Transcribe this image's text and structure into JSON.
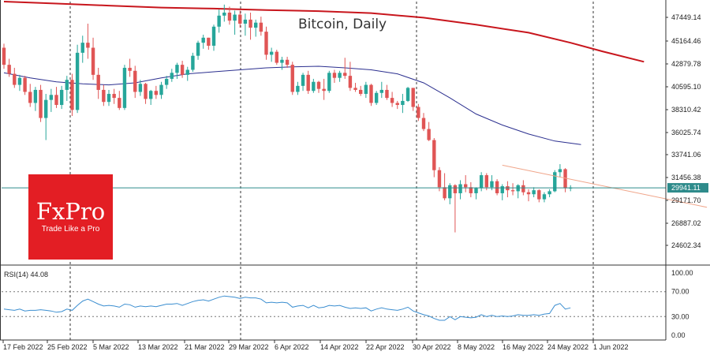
{
  "chart_data": [
    {
      "type": "candlestick",
      "title": "Bitcoin, Daily",
      "up_color": "#26a69a",
      "down_color": "#e05555",
      "x_tick_labels": [
        "17 Feb 2022",
        "25 Feb 2022",
        "5 Mar 2022",
        "13 Mar 2022",
        "21 Mar 2022",
        "29 Mar 2022",
        "6 Apr 2022",
        "14 Apr 2022",
        "22 Apr 2022",
        "30 Apr 2022",
        "8 May 2022",
        "16 May 2022",
        "24 May 2022",
        "1 Jun 2022"
      ],
      "y_tick_labels": [
        "47449.14",
        "45164.46",
        "42879.78",
        "40595.10",
        "38310.42",
        "36025.74",
        "33741.06",
        "31456.38",
        "29171.70",
        "26887.02",
        "24602.34"
      ],
      "ylim": [
        22400,
        48500
      ],
      "current_price_label": "29941.11",
      "current_price": 29941.11,
      "candles": [
        [
          43900,
          44300,
          41800,
          42200
        ],
        [
          42200,
          42800,
          41000,
          41300
        ],
        [
          41300,
          41900,
          39900,
          40200
        ],
        [
          40200,
          41200,
          39600,
          40900
        ],
        [
          40900,
          41100,
          39200,
          39500
        ],
        [
          39500,
          40300,
          38000,
          38400
        ],
        [
          38400,
          40000,
          37600,
          39700
        ],
        [
          39700,
          40200,
          36500,
          36900
        ],
        [
          36900,
          39300,
          34700,
          38700
        ],
        [
          38700,
          39800,
          37500,
          39200
        ],
        [
          39200,
          40000,
          37900,
          38200
        ],
        [
          38200,
          40100,
          37800,
          39700
        ],
        [
          39700,
          41100,
          38600,
          40700
        ],
        [
          40700,
          41300,
          37100,
          37700
        ],
        [
          37700,
          44200,
          37400,
          43400
        ],
        [
          43400,
          45100,
          42400,
          44400
        ],
        [
          44400,
          46300,
          42800,
          43900
        ],
        [
          43900,
          44900,
          40700,
          41200
        ],
        [
          41200,
          41900,
          38800,
          39700
        ],
        [
          39700,
          40200,
          38100,
          38500
        ],
        [
          38500,
          39700,
          38100,
          39300
        ],
        [
          39300,
          39800,
          38300,
          38900
        ],
        [
          38900,
          39600,
          37700,
          37900
        ],
        [
          37900,
          42200,
          37700,
          41900
        ],
        [
          41900,
          42800,
          41000,
          41600
        ],
        [
          41600,
          42100,
          38900,
          39500
        ],
        [
          39500,
          40700,
          39100,
          40300
        ],
        [
          40300,
          40400,
          38300,
          38800
        ],
        [
          38800,
          39700,
          38200,
          39600
        ],
        [
          39600,
          40100,
          38800,
          39200
        ],
        [
          39200,
          40500,
          38800,
          40200
        ],
        [
          40200,
          41100,
          39800,
          40800
        ],
        [
          40800,
          41800,
          40500,
          41400
        ],
        [
          41400,
          42400,
          40800,
          42200
        ],
        [
          42200,
          42600,
          40900,
          41200
        ],
        [
          41200,
          42000,
          40600,
          41700
        ],
        [
          41700,
          43400,
          41500,
          43100
        ],
        [
          43100,
          44600,
          42700,
          44400
        ],
        [
          44400,
          45200,
          43800,
          44900
        ],
        [
          44900,
          44900,
          43700,
          44100
        ],
        [
          44100,
          46200,
          43600,
          46000
        ],
        [
          46000,
          47700,
          45400,
          47100
        ],
        [
          47100,
          48200,
          46500,
          47400
        ],
        [
          47400,
          48000,
          46200,
          46600
        ],
        [
          46600,
          47600,
          45200,
          47200
        ],
        [
          47200,
          47600,
          45900,
          46300
        ],
        [
          46300,
          47300,
          45100,
          46700
        ],
        [
          46700,
          47400,
          44700,
          45900
        ],
        [
          45900,
          46700,
          45000,
          46400
        ],
        [
          46400,
          47000,
          45100,
          45500
        ],
        [
          45500,
          46000,
          42700,
          43200
        ],
        [
          43200,
          43900,
          42500,
          43500
        ],
        [
          43500,
          43700,
          42200,
          42400
        ],
        [
          42400,
          43000,
          41700,
          42700
        ],
        [
          42700,
          43000,
          41900,
          42200
        ],
        [
          42200,
          42500,
          39200,
          39500
        ],
        [
          39500,
          40500,
          39200,
          40100
        ],
        [
          40100,
          41400,
          39600,
          41200
        ],
        [
          41200,
          41600,
          39300,
          39600
        ],
        [
          39600,
          40800,
          39400,
          40500
        ],
        [
          40500,
          40600,
          39400,
          39800
        ],
        [
          39800,
          40800,
          38700,
          39600
        ],
        [
          39600,
          41600,
          39400,
          41400
        ],
        [
          41400,
          41700,
          40400,
          40900
        ],
        [
          40900,
          41600,
          40500,
          41400
        ],
        [
          41400,
          42900,
          40800,
          41100
        ],
        [
          41100,
          42500,
          39600,
          39900
        ],
        [
          39900,
          40400,
          39500,
          39700
        ],
        [
          39700,
          40100,
          39100,
          39300
        ],
        [
          39300,
          40500,
          38900,
          40200
        ],
        [
          40200,
          40300,
          38100,
          38400
        ],
        [
          38400,
          39600,
          38200,
          39400
        ],
        [
          39400,
          40500,
          38900,
          39700
        ],
        [
          39700,
          40200,
          38700,
          38900
        ],
        [
          38900,
          39500,
          38000,
          38400
        ],
        [
          38400,
          38600,
          37800,
          38200
        ],
        [
          38200,
          39300,
          37400,
          38600
        ],
        [
          38600,
          40000,
          38500,
          39900
        ],
        [
          39900,
          39900,
          37600,
          38000
        ],
        [
          38000,
          38300,
          36600,
          36900
        ],
        [
          36900,
          37400,
          35600,
          35800
        ],
        [
          35800,
          36500,
          34600,
          34700
        ],
        [
          34700,
          34900,
          31000,
          31700
        ],
        [
          31700,
          32000,
          29600,
          30000
        ],
        [
          30000,
          31400,
          28700,
          28900
        ],
        [
          28900,
          30400,
          28300,
          30200
        ],
        [
          30200,
          30300,
          25500,
          29400
        ],
        [
          29400,
          30700,
          28800,
          30300
        ],
        [
          30300,
          31200,
          29500,
          30000
        ],
        [
          30000,
          30500,
          29000,
          29400
        ],
        [
          29400,
          30000,
          28800,
          29900
        ],
        [
          29900,
          31500,
          29600,
          31200
        ],
        [
          31200,
          31400,
          29700,
          30000
        ],
        [
          30000,
          31200,
          29700,
          30600
        ],
        [
          30600,
          30800,
          29200,
          29400
        ],
        [
          29400,
          30300,
          28700,
          30100
        ],
        [
          30100,
          30600,
          29000,
          29700
        ],
        [
          29700,
          30400,
          29200,
          29600
        ],
        [
          29600,
          30300,
          28900,
          30200
        ],
        [
          30200,
          30700,
          29200,
          29500
        ],
        [
          29500,
          29800,
          28600,
          29300
        ],
        [
          29300,
          30000,
          29000,
          29700
        ],
        [
          29700,
          29800,
          28500,
          28800
        ],
        [
          28800,
          29500,
          28500,
          29300
        ],
        [
          29300,
          29800,
          29000,
          29600
        ],
        [
          29600,
          31700,
          29500,
          31500
        ],
        [
          31500,
          32300,
          31000,
          31800
        ],
        [
          31800,
          31900,
          29500,
          29900
        ],
        [
          29900,
          30200,
          29600,
          29950
        ]
      ],
      "ma_slow": {
        "color": "#c8161d",
        "points": [
          [
            0,
            48500
          ],
          [
            10,
            48300
          ],
          [
            20,
            48100
          ],
          [
            30,
            47900
          ],
          [
            40,
            47800
          ],
          [
            50,
            47650
          ],
          [
            60,
            47550
          ],
          [
            70,
            47350
          ],
          [
            80,
            46900
          ],
          [
            90,
            46200
          ],
          [
            100,
            45400
          ],
          [
            108,
            44400
          ],
          [
            114,
            43550
          ],
          [
            122,
            42500
          ]
        ]
      },
      "ma_fast": {
        "color": "#2b2f8f",
        "points": [
          [
            0,
            41400
          ],
          [
            5,
            40900
          ],
          [
            10,
            40500
          ],
          [
            15,
            40300
          ],
          [
            20,
            40200
          ],
          [
            25,
            40400
          ],
          [
            30,
            40900
          ],
          [
            35,
            41300
          ],
          [
            40,
            41500
          ],
          [
            45,
            41700
          ],
          [
            50,
            41900
          ],
          [
            55,
            42000
          ],
          [
            60,
            42050
          ],
          [
            65,
            41900
          ],
          [
            70,
            41700
          ],
          [
            75,
            41300
          ],
          [
            80,
            40400
          ],
          [
            85,
            38900
          ],
          [
            90,
            37300
          ],
          [
            95,
            36200
          ],
          [
            100,
            35300
          ],
          [
            105,
            34600
          ],
          [
            110,
            34250
          ]
        ]
      },
      "trendline": {
        "color": "#f0a58a",
        "start": [
          95,
          32200
        ],
        "end": [
          134,
          28000
        ]
      }
    },
    {
      "type": "line",
      "title": "RSI(14) 44.08",
      "line_color": "#3b8ed0",
      "ylim": [
        0,
        100
      ],
      "y_tick_labels": [
        "100.00",
        "70.00",
        "30.00",
        "0.00"
      ],
      "levels": [
        70,
        30
      ],
      "values": [
        42,
        41,
        40,
        42,
        39,
        40,
        40,
        41,
        40,
        39,
        37,
        38,
        42,
        40,
        48,
        55,
        58,
        54,
        50,
        47,
        48,
        47,
        45,
        50,
        49,
        45,
        47,
        46,
        47,
        46,
        48,
        50,
        50,
        51,
        48,
        51,
        54,
        56,
        57,
        55,
        58,
        61,
        63,
        62,
        61,
        59,
        61,
        60,
        60,
        58,
        52,
        53,
        52,
        53,
        52,
        45,
        47,
        48,
        44,
        48,
        44,
        45,
        48,
        47,
        48,
        45,
        43,
        44,
        43,
        44,
        39,
        42,
        44,
        42,
        41,
        40,
        42,
        45,
        39,
        36,
        33,
        31,
        27,
        24,
        24,
        30,
        25,
        30,
        29,
        28,
        29,
        33,
        30,
        32,
        30,
        31,
        30,
        31,
        33,
        32,
        32,
        33,
        32,
        34,
        35,
        48,
        51,
        42,
        44.08
      ]
    }
  ]
}
